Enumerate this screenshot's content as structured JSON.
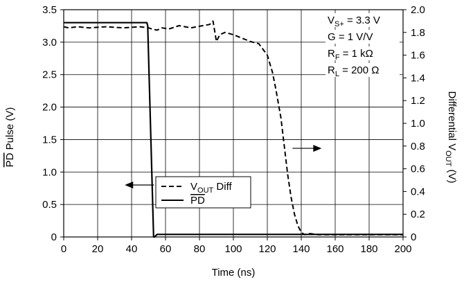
{
  "chart_data": {
    "type": "line",
    "xlabel": "Time (ns)",
    "ylabel_left": {
      "overbar": "PD",
      "rest": " Pulse (V)"
    },
    "ylabel_right": {
      "main": "Differential V",
      "sub": "OUT",
      "unit": " (V)"
    },
    "xlim": [
      0,
      200
    ],
    "ylim_left": [
      0,
      3.5
    ],
    "ylim_right": [
      0,
      2.0
    ],
    "x_ticks": [
      "0",
      "20",
      "40",
      "60",
      "80",
      "100",
      "120",
      "140",
      "160",
      "180",
      "200"
    ],
    "y_left_ticks": [
      "0",
      "0.5",
      "1.0",
      "1.5",
      "2.0",
      "2.5",
      "3.0",
      "3.5"
    ],
    "y_right_ticks": [
      "0",
      "0.2",
      "0.4",
      "0.6",
      "0.8",
      "1.0",
      "1.2",
      "1.4",
      "1.6",
      "1.8",
      "2.0"
    ],
    "grid": true,
    "conditions": [
      {
        "main": "V",
        "sub": "S+",
        "rest": " = 3.3 V"
      },
      {
        "main": "G = 1 V/V",
        "sub": "",
        "rest": ""
      },
      {
        "main": "R",
        "sub": "F",
        "rest": " = 1 kΩ"
      },
      {
        "main": "R",
        "sub": "L",
        "rest": " = 200 Ω"
      }
    ],
    "legend": {
      "placement": "center-bottom",
      "entries": [
        {
          "main": "V",
          "sub": "OUT",
          "rest": " Diff",
          "style": "dashed"
        },
        {
          "main": "PD",
          "sub": "",
          "rest": "",
          "style": "solid",
          "overbar": true
        }
      ]
    },
    "series": [
      {
        "key": "vout_diff",
        "axis": "right",
        "style": "dashed",
        "x": [
          0,
          3,
          8,
          15,
          25,
          35,
          45,
          50,
          52,
          55,
          58,
          62,
          68,
          75,
          82,
          86,
          88,
          90,
          92,
          95,
          100,
          105,
          110,
          115,
          120,
          123,
          125,
          128,
          130,
          132,
          134,
          136,
          138,
          140,
          142,
          145,
          150,
          160,
          175,
          190,
          200
        ],
        "y": [
          1.85,
          1.84,
          1.85,
          1.84,
          1.85,
          1.84,
          1.85,
          1.84,
          1.83,
          1.82,
          1.84,
          1.83,
          1.86,
          1.84,
          1.86,
          1.87,
          1.9,
          1.72,
          1.78,
          1.8,
          1.78,
          1.75,
          1.72,
          1.7,
          1.6,
          1.45,
          1.3,
          1.05,
          0.8,
          0.55,
          0.35,
          0.2,
          0.1,
          0.04,
          0.02,
          0.03,
          0.02,
          0.02,
          0.02,
          0.02,
          0.02
        ]
      },
      {
        "key": "pd",
        "axis": "left",
        "style": "solid",
        "x": [
          0,
          49,
          49.5,
          53,
          53.5,
          55,
          56,
          200
        ],
        "y": [
          3.3,
          3.3,
          3.25,
          0,
          0,
          0.04,
          0.04,
          0.04
        ]
      }
    ],
    "arrows": [
      {
        "x": 45,
        "y_left": 0.8,
        "direction": "left",
        "target_axis": "left"
      },
      {
        "x": 143,
        "y_right": 0.78,
        "direction": "right",
        "target_axis": "right"
      }
    ]
  }
}
